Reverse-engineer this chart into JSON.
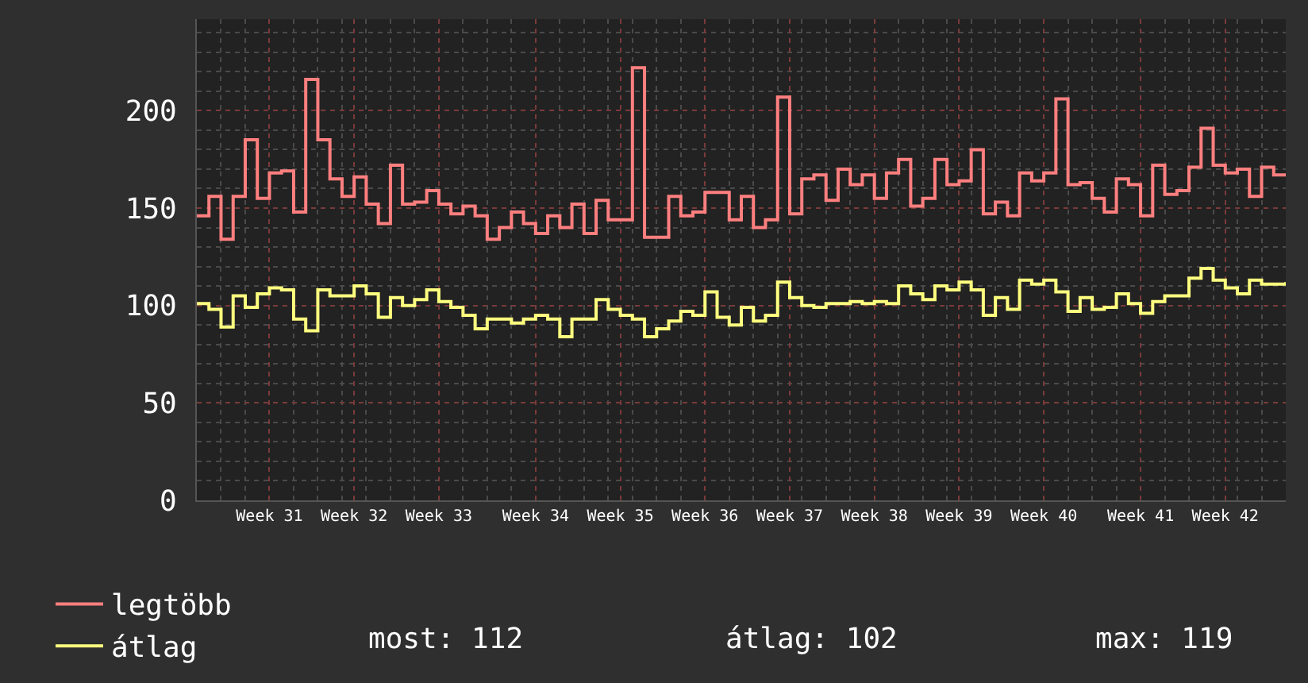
{
  "chart_data": {
    "type": "step",
    "categories": [
      null,
      null,
      null,
      null,
      null,
      null,
      "Week 31",
      null,
      null,
      null,
      null,
      null,
      null,
      "Week 32",
      null,
      null,
      null,
      null,
      null,
      null,
      "Week 33",
      null,
      null,
      null,
      null,
      null,
      null,
      null,
      "Week 34",
      null,
      null,
      null,
      null,
      null,
      null,
      "Week 35",
      null,
      null,
      null,
      null,
      null,
      null,
      "Week 36",
      null,
      null,
      null,
      null,
      null,
      null,
      "Week 37",
      null,
      null,
      null,
      null,
      null,
      null,
      "Week 38",
      null,
      null,
      null,
      null,
      null,
      null,
      "Week 39",
      null,
      null,
      null,
      null,
      null,
      null,
      "Week 40",
      null,
      null,
      null,
      null,
      null,
      null,
      null,
      "Week 41",
      null,
      null,
      null,
      null,
      null,
      null,
      "Week 42",
      null,
      null,
      null,
      null,
      null
    ],
    "series": [
      {
        "name": "legtöbb",
        "color": "#ff7f7f",
        "values": [
          146,
          156,
          134,
          156,
          185,
          155,
          168,
          169,
          148,
          216,
          185,
          165,
          156,
          166,
          152,
          142,
          172,
          152,
          153,
          159,
          152,
          147,
          151,
          146,
          134,
          140,
          148,
          142,
          137,
          146,
          140,
          152,
          137,
          154,
          144,
          144,
          222,
          135,
          135,
          156,
          146,
          148,
          158,
          158,
          144,
          156,
          140,
          144,
          207,
          147,
          165,
          167,
          154,
          170,
          162,
          167,
          155,
          168,
          175,
          151,
          155,
          175,
          162,
          164,
          180,
          147,
          153,
          146,
          168,
          164,
          168,
          206,
          162,
          163,
          155,
          148,
          165,
          162,
          146,
          172,
          157,
          159,
          171,
          191,
          172,
          168,
          170,
          156,
          171,
          167,
          167
        ]
      },
      {
        "name": "átlag",
        "color": "#ffff7f",
        "values": [
          101,
          98,
          89,
          105,
          99,
          106,
          109,
          108,
          93,
          87,
          108,
          105,
          105,
          110,
          106,
          94,
          104,
          100,
          103,
          108,
          102,
          99,
          95,
          88,
          93,
          93,
          91,
          93,
          95,
          93,
          84,
          93,
          93,
          103,
          98,
          95,
          93,
          84,
          88,
          92,
          97,
          95,
          107,
          94,
          90,
          99,
          92,
          95,
          112,
          104,
          100,
          99,
          101,
          101,
          102,
          101,
          102,
          101,
          110,
          106,
          103,
          110,
          108,
          112,
          108,
          95,
          104,
          98,
          113,
          111,
          113,
          107,
          97,
          104,
          98,
          99,
          106,
          101,
          96,
          102,
          105,
          105,
          114,
          119,
          113,
          109,
          106,
          113,
          111,
          111,
          112
        ]
      }
    ],
    "ylim": [
      0,
      247
    ],
    "yticks": [
      0,
      50,
      100,
      150,
      200
    ],
    "grid": true,
    "legend": "bottom left",
    "annotations": [
      "most: 112",
      "átlag: 102",
      "max: 119"
    ]
  }
}
